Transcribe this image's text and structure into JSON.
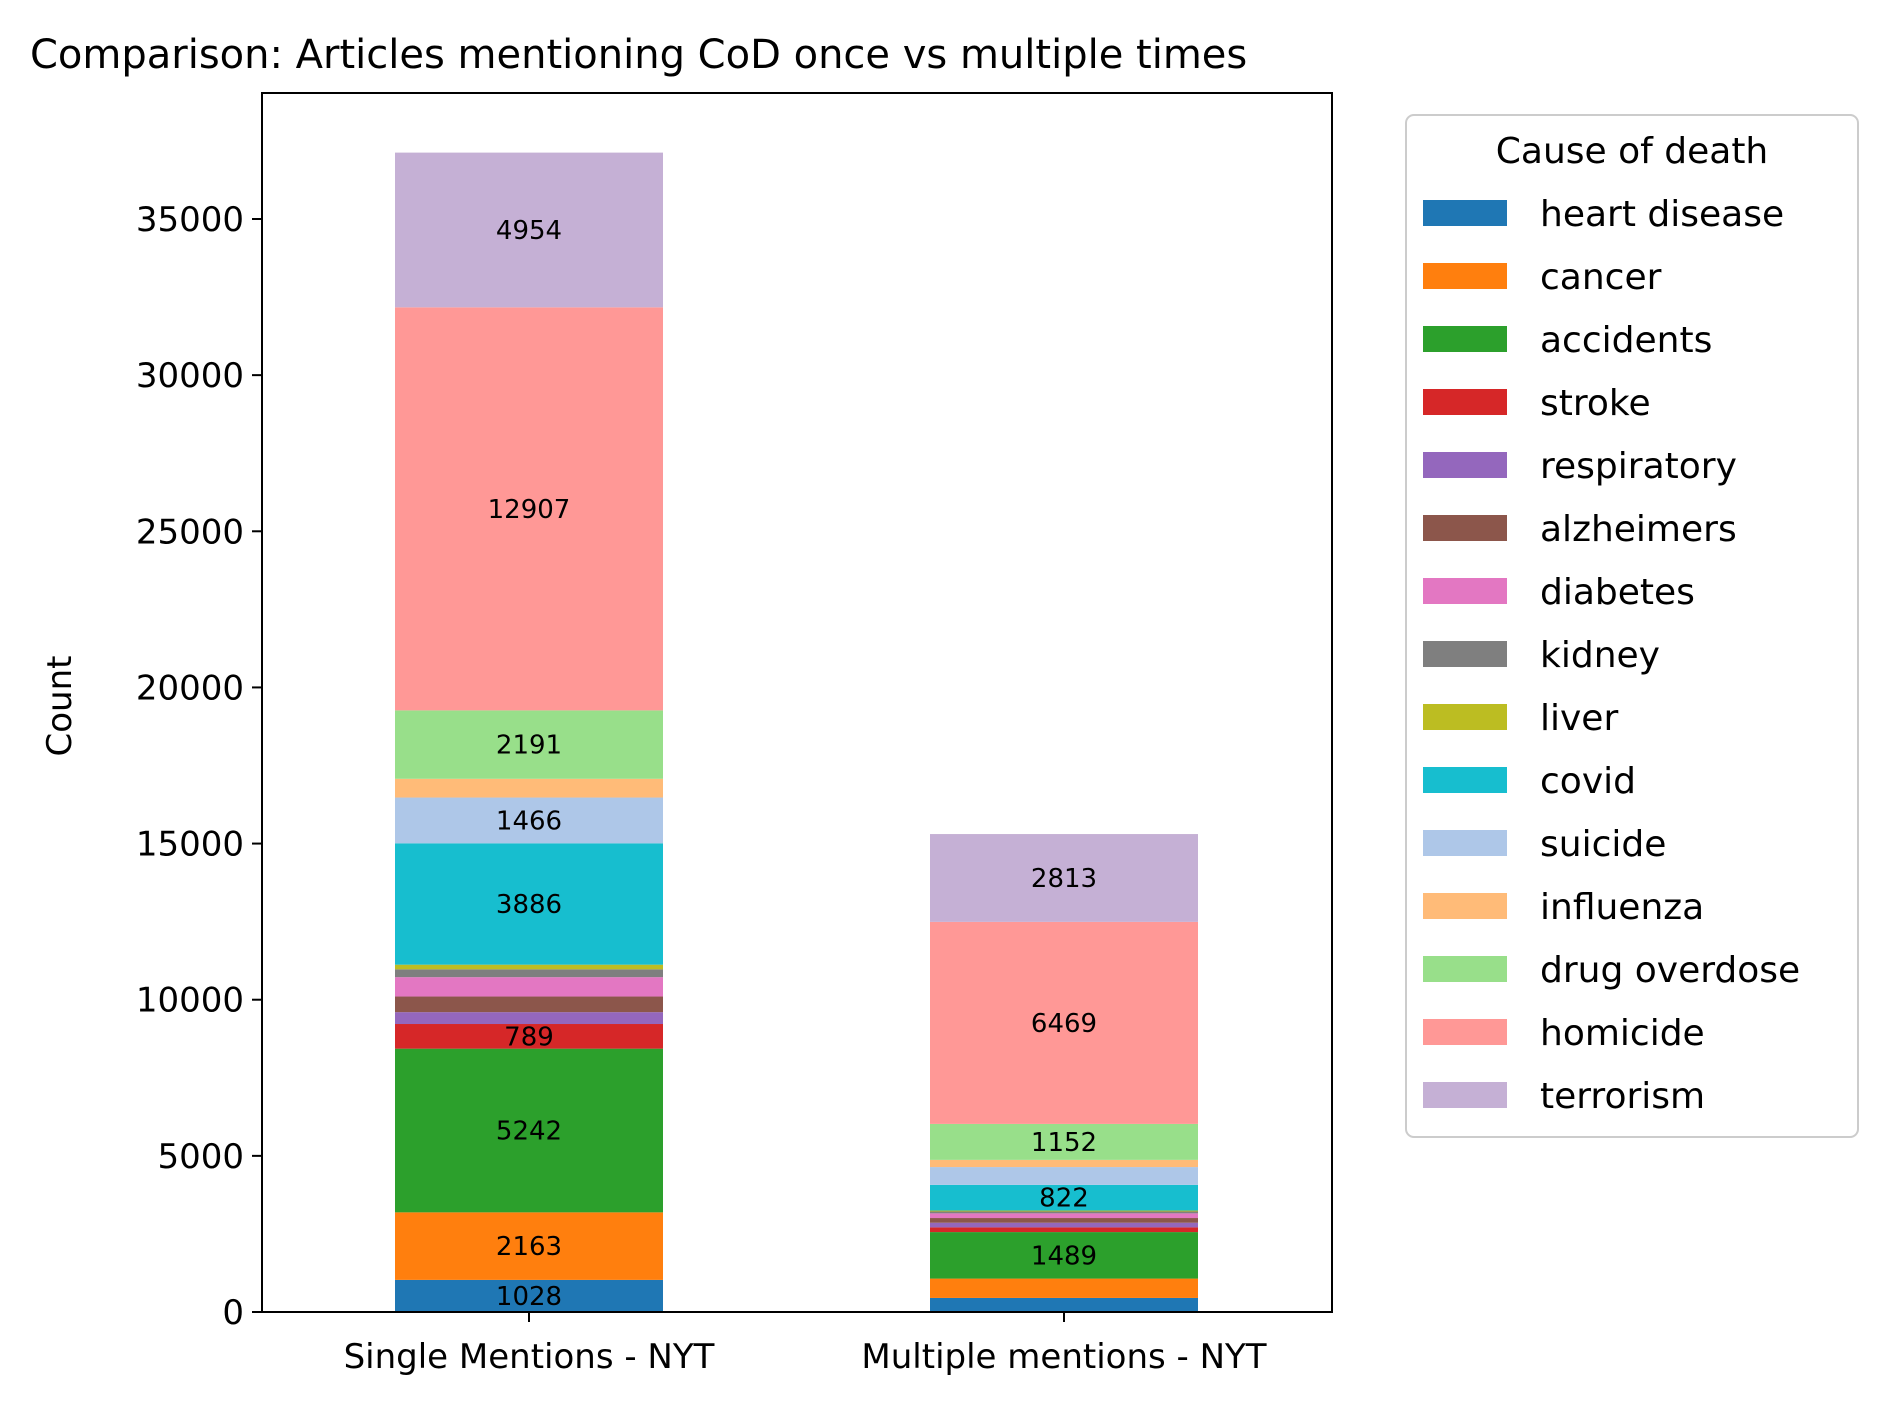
{
  "chart_data": {
    "type": "bar",
    "stacked": true,
    "title": "Comparison: Articles mentioning CoD once vs multiple times",
    "xlabel": "",
    "ylabel": "Count",
    "ylim": [
      0,
      38000
    ],
    "yticks": [
      0,
      5000,
      10000,
      15000,
      20000,
      25000,
      30000,
      35000
    ],
    "categories": [
      "Single Mentions - NYT",
      "Multiple mentions - NYT"
    ],
    "grid": false,
    "legend": {
      "title": "Cause of death",
      "placement": "outside-right"
    },
    "series": [
      {
        "name": "heart disease",
        "color": "#1f77b4",
        "values": [
          1028,
          450
        ],
        "labels": [
          "1028",
          ""
        ]
      },
      {
        "name": "cancer",
        "color": "#ff7f0e",
        "values": [
          2163,
          620
        ],
        "labels": [
          "2163",
          ""
        ]
      },
      {
        "name": "accidents",
        "color": "#2ca02c",
        "values": [
          5242,
          1489
        ],
        "labels": [
          "5242",
          "1489"
        ]
      },
      {
        "name": "stroke",
        "color": "#d62728",
        "values": [
          789,
          150
        ],
        "labels": [
          "789",
          ""
        ]
      },
      {
        "name": "respiratory",
        "color": "#9467bd",
        "values": [
          380,
          150
        ],
        "labels": [
          "",
          ""
        ]
      },
      {
        "name": "alzheimers",
        "color": "#8c564b",
        "values": [
          500,
          150
        ],
        "labels": [
          "",
          ""
        ]
      },
      {
        "name": "diabetes",
        "color": "#e377c2",
        "values": [
          620,
          150
        ],
        "labels": [
          "",
          ""
        ]
      },
      {
        "name": "kidney",
        "color": "#7f7f7f",
        "values": [
          250,
          60
        ],
        "labels": [
          "",
          ""
        ]
      },
      {
        "name": "liver",
        "color": "#bcbd22",
        "values": [
          150,
          30
        ],
        "labels": [
          "",
          ""
        ]
      },
      {
        "name": "covid",
        "color": "#17becf",
        "values": [
          3886,
          822
        ],
        "labels": [
          "3886",
          "822"
        ]
      },
      {
        "name": "suicide",
        "color": "#aec7e8",
        "values": [
          1466,
          570
        ],
        "labels": [
          "1466",
          ""
        ]
      },
      {
        "name": "influenza",
        "color": "#ffbb78",
        "values": [
          600,
          230
        ],
        "labels": [
          "",
          ""
        ]
      },
      {
        "name": "drug overdose",
        "color": "#98df8a",
        "values": [
          2191,
          1152
        ],
        "labels": [
          "2191",
          "1152"
        ]
      },
      {
        "name": "homicide",
        "color": "#ff9896",
        "values": [
          12907,
          6469
        ],
        "labels": [
          "12907",
          "6469"
        ]
      },
      {
        "name": "terrorism",
        "color": "#c5b0d5",
        "values": [
          4954,
          2813
        ],
        "labels": [
          "4954",
          "2813"
        ]
      }
    ]
  }
}
